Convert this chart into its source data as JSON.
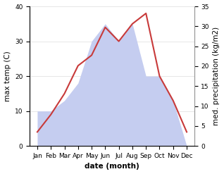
{
  "months": [
    "Jan",
    "Feb",
    "Mar",
    "Apr",
    "May",
    "Jun",
    "Jul",
    "Aug",
    "Sep",
    "Oct",
    "Nov",
    "Dec"
  ],
  "temperature": [
    4,
    9,
    15,
    23,
    26,
    34,
    30,
    35,
    38,
    20,
    13,
    4
  ],
  "precipitation": [
    10,
    10,
    13,
    18,
    30,
    35,
    30,
    35,
    20,
    20,
    13,
    0
  ],
  "temp_color": "#c83a3a",
  "precip_color": "#c5cdf0",
  "left_ylabel": "max temp (C)",
  "right_ylabel": "med. precipitation (kg/m2)",
  "xlabel": "date (month)",
  "ylim_left": [
    0,
    40
  ],
  "ylim_right": [
    0,
    35
  ],
  "yticks_left": [
    0,
    10,
    20,
    30,
    40
  ],
  "yticks_right": [
    0,
    5,
    10,
    15,
    20,
    25,
    30,
    35
  ],
  "background_color": "#ffffff",
  "label_fontsize": 7.5,
  "tick_fontsize": 6.5
}
